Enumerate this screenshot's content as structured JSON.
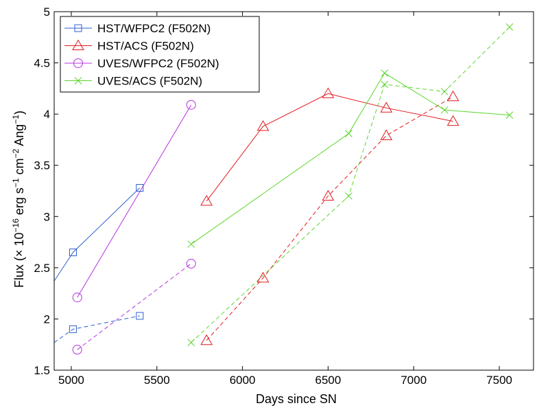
{
  "chart_data": {
    "type": "line",
    "xlabel": "Days since SN",
    "ylabel_parts": {
      "prefix": "Flux (",
      "times": "×",
      "ten": " 10",
      "exp1": "−16",
      "erg": " erg s",
      "exp2": "−1",
      "cm": " cm",
      "exp3": "−2",
      "ang": " Ang",
      "exp4": "−1",
      "suffix": ")"
    },
    "xlim": [
      4900,
      7700
    ],
    "ylim": [
      1.5,
      5
    ],
    "xticks": [
      5000,
      5500,
      6000,
      6500,
      7000,
      7500
    ],
    "yticks": [
      1.5,
      2,
      2.5,
      3,
      3.5,
      4,
      4.5,
      5
    ],
    "ytick_labels": [
      "1.5",
      "2",
      "2.5",
      "3",
      "3.5",
      "4",
      "4.5",
      "5"
    ],
    "legend_location": "top-left",
    "series": [
      {
        "name": "HST/WFPC2 (F502N)",
        "color": "#2e5fd0",
        "marker": "square",
        "dash": false,
        "points": [
          [
            4900,
            2.37
          ],
          [
            5010,
            2.65
          ],
          [
            5400,
            3.28
          ]
        ]
      },
      {
        "name": "HST/WFPC2 (F502N)",
        "color": "#2e5fd0",
        "marker": "square",
        "dash": true,
        "legend": false,
        "points": [
          [
            4900,
            1.77
          ],
          [
            5010,
            1.9
          ],
          [
            5400,
            2.03
          ]
        ]
      },
      {
        "name": "HST/ACS (F502N)",
        "color": "#e0191e",
        "marker": "triangle",
        "dash": false,
        "points": [
          [
            5790,
            3.15
          ],
          [
            6120,
            3.88
          ],
          [
            6500,
            4.2
          ],
          [
            6840,
            4.06
          ],
          [
            7230,
            3.93
          ]
        ]
      },
      {
        "name": "HST/ACS (F502N)",
        "color": "#e0191e",
        "marker": "triangle",
        "dash": true,
        "legend": false,
        "points": [
          [
            5790,
            1.79
          ],
          [
            6120,
            2.4
          ],
          [
            6500,
            3.2
          ],
          [
            6840,
            3.79
          ],
          [
            7230,
            4.17
          ]
        ]
      },
      {
        "name": "UVES/WFPC2 (F502N)",
        "color": "#b431e0",
        "marker": "circle",
        "dash": false,
        "points": [
          [
            5035,
            2.21
          ],
          [
            5700,
            4.09
          ]
        ]
      },
      {
        "name": "UVES/WFPC2 (F502N)",
        "color": "#b431e0",
        "marker": "circle",
        "dash": true,
        "legend": false,
        "points": [
          [
            5035,
            1.7
          ],
          [
            5700,
            2.54
          ]
        ]
      },
      {
        "name": "UVES/ACS (F502N)",
        "color": "#5ad62c",
        "marker": "x",
        "dash": false,
        "points": [
          [
            5700,
            2.73
          ],
          [
            6620,
            3.81
          ],
          [
            6830,
            4.4
          ],
          [
            7180,
            4.04
          ],
          [
            7560,
            3.99
          ]
        ]
      },
      {
        "name": "UVES/ACS (F502N)",
        "color": "#5ad62c",
        "marker": "x",
        "dash": true,
        "legend": false,
        "points": [
          [
            5700,
            1.77
          ],
          [
            6620,
            3.2
          ],
          [
            6830,
            4.29
          ],
          [
            7180,
            4.22
          ],
          [
            7560,
            4.85
          ]
        ]
      }
    ]
  }
}
